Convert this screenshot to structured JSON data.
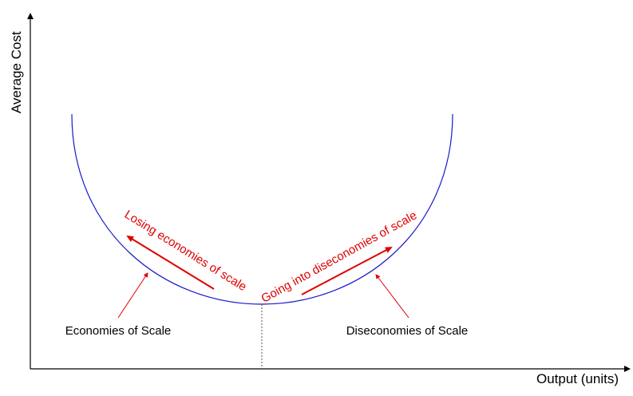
{
  "diagram": {
    "y_axis_label": "Average Cost",
    "x_axis_label": "Output (units)",
    "left_region_label": "Economies of Scale",
    "right_region_label": "Diseconomies of Scale",
    "left_curve_label": "Losing economies of scale",
    "right_curve_label": "Going into diseconomies of scale"
  },
  "colors": {
    "curve": "#1a1acc",
    "annotation": "#e00000",
    "axis": "#000000"
  }
}
